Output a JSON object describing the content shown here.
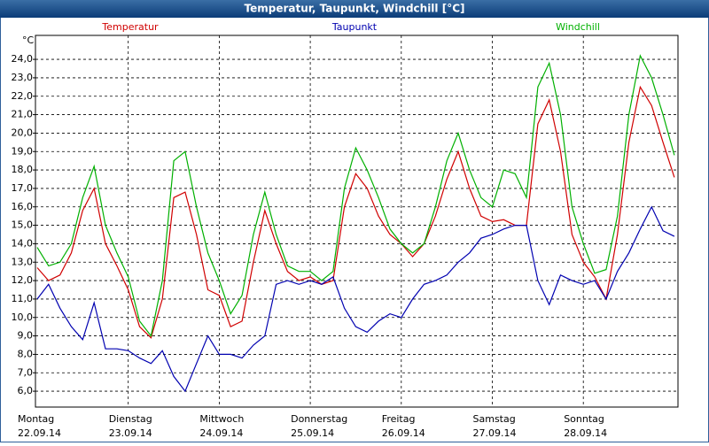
{
  "chart_data": {
    "type": "line",
    "title": "Temperatur, Taupunkt, Windchill [°C]",
    "y_unit": "°C",
    "days": [
      {
        "weekday": "Montag",
        "date": "22.09.14"
      },
      {
        "weekday": "Dienstag",
        "date": "23.09.14"
      },
      {
        "weekday": "Mittwoch",
        "date": "24.09.14"
      },
      {
        "weekday": "Donnerstag",
        "date": "25.09.14"
      },
      {
        "weekday": "Freitag",
        "date": "26.09.14"
      },
      {
        "weekday": "Samstag",
        "date": "27.09.14"
      },
      {
        "weekday": "Sonntag",
        "date": "28.09.14"
      }
    ],
    "ylim": [
      5.14,
      25.3
    ],
    "yticks": [
      {
        "value": 6,
        "label": "6,0"
      },
      {
        "value": 7,
        "label": "7,0"
      },
      {
        "value": 8,
        "label": "8,0"
      },
      {
        "value": 9,
        "label": "9,0"
      },
      {
        "value": 10,
        "label": "10,0"
      },
      {
        "value": 11,
        "label": "11,0"
      },
      {
        "value": 12,
        "label": "12,0"
      },
      {
        "value": 13,
        "label": "13,0"
      },
      {
        "value": 14,
        "label": "14,0"
      },
      {
        "value": 15,
        "label": "15,0"
      },
      {
        "value": 16,
        "label": "16,0"
      },
      {
        "value": 17,
        "label": "17,0"
      },
      {
        "value": 18,
        "label": "18,0"
      },
      {
        "value": 19,
        "label": "19,0"
      },
      {
        "value": 20,
        "label": "20,0"
      },
      {
        "value": 21,
        "label": "21,0"
      },
      {
        "value": 22,
        "label": "22,0"
      },
      {
        "value": 23,
        "label": "23,0"
      },
      {
        "value": 24,
        "label": "24,0"
      }
    ],
    "grid": true,
    "series": [
      {
        "name": "Temperatur",
        "color": "#d00000",
        "values": [
          12.7,
          12.0,
          12.3,
          13.5,
          15.8,
          17.0,
          14.0,
          12.8,
          11.5,
          9.5,
          8.9,
          11.0,
          16.5,
          16.8,
          14.5,
          11.5,
          11.2,
          9.5,
          9.8,
          13.0,
          15.8,
          14.0,
          12.5,
          12.0,
          12.2,
          11.8,
          12.0,
          16.0,
          17.8,
          17.0,
          15.5,
          14.5,
          14.0,
          13.3,
          14.0,
          15.5,
          17.5,
          19.0,
          17.0,
          15.5,
          15.2,
          15.3,
          15.0,
          15.0,
          20.5,
          21.8,
          19.0,
          14.5,
          13.0,
          12.2,
          11.0,
          14.5,
          19.5,
          22.5,
          21.5,
          19.5,
          17.6
        ]
      },
      {
        "name": "Taupunkt",
        "color": "#0000b0",
        "values": [
          11.0,
          11.8,
          10.5,
          9.5,
          8.8,
          10.8,
          8.3,
          8.3,
          8.2,
          7.8,
          7.5,
          8.2,
          6.8,
          6.0,
          7.5,
          9.0,
          8.0,
          8.0,
          7.8,
          8.5,
          9.0,
          11.8,
          12.0,
          11.8,
          12.0,
          11.8,
          12.2,
          10.5,
          9.5,
          9.2,
          9.8,
          10.2,
          10.0,
          11.0,
          11.8,
          12.0,
          12.3,
          13.0,
          13.5,
          14.3,
          14.5,
          14.8,
          15.0,
          15.0,
          12.0,
          10.7,
          12.3,
          12.0,
          11.8,
          12.0,
          11.0,
          12.5,
          13.5,
          14.8,
          16.0,
          14.7,
          14.4
        ]
      },
      {
        "name": "Windchill",
        "color": "#00b000",
        "values": [
          13.8,
          12.8,
          13.0,
          14.0,
          16.5,
          18.2,
          15.0,
          13.5,
          12.2,
          9.8,
          9.0,
          12.0,
          18.5,
          19.0,
          16.0,
          13.5,
          12.0,
          10.2,
          11.2,
          14.5,
          16.8,
          14.5,
          12.8,
          12.5,
          12.5,
          12.0,
          12.5,
          17.0,
          19.2,
          18.0,
          16.5,
          14.8,
          14.0,
          13.5,
          14.0,
          16.0,
          18.5,
          20.0,
          18.0,
          16.5,
          16.0,
          18.0,
          17.8,
          16.5,
          22.5,
          23.8,
          21.0,
          16.0,
          14.0,
          12.4,
          12.6,
          15.5,
          21.0,
          24.2,
          23.0,
          21.0,
          18.8
        ]
      }
    ]
  }
}
